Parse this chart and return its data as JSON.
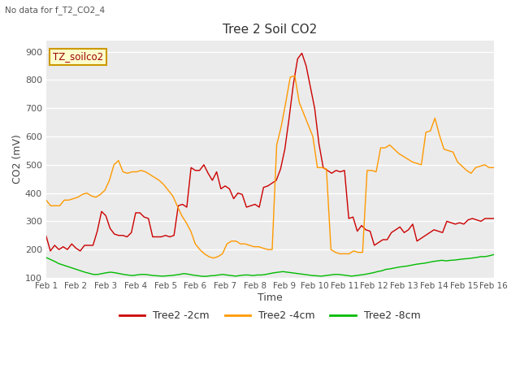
{
  "title": "Tree 2 Soil CO2",
  "subtitle": "No data for f_T2_CO2_4",
  "xlabel": "Time",
  "ylabel": "CO2 (mV)",
  "ylim": [
    100,
    940
  ],
  "yticks": [
    100,
    200,
    300,
    400,
    500,
    600,
    700,
    800,
    900
  ],
  "xtick_labels": [
    "Feb 1",
    "Feb 2",
    "Feb 3",
    "Feb 4",
    "Feb 5",
    "Feb 6",
    "Feb 7",
    "Feb 8",
    "Feb 9",
    "Feb 10",
    "Feb 11",
    "Feb 12",
    "Feb 13",
    "Feb 14",
    "Feb 15",
    "Feb 16"
  ],
  "legend_labels": [
    "Tree2 -2cm",
    "Tree2 -4cm",
    "Tree2 -8cm"
  ],
  "line_colors": [
    "#cc0000",
    "#ff9900",
    "#00bb00"
  ],
  "annotation_box": "TZ_soilco2",
  "plot_bg": "#ebebeb",
  "red_series": [
    248,
    195,
    215,
    200,
    210,
    200,
    220,
    205,
    195,
    215,
    215,
    215,
    265,
    335,
    320,
    275,
    255,
    250,
    250,
    245,
    260,
    330,
    330,
    315,
    310,
    245,
    245,
    245,
    250,
    245,
    250,
    355,
    360,
    350,
    490,
    480,
    480,
    500,
    470,
    445,
    475,
    415,
    425,
    415,
    380,
    400,
    395,
    350,
    355,
    360,
    350,
    420,
    425,
    435,
    445,
    485,
    555,
    665,
    785,
    875,
    895,
    850,
    775,
    700,
    575,
    490,
    480,
    470,
    480,
    475,
    480,
    310,
    315,
    265,
    285,
    270,
    265,
    215,
    225,
    235,
    235,
    260,
    270,
    280,
    260,
    270,
    290,
    230,
    240,
    250,
    260,
    270,
    265,
    260,
    300,
    295,
    290,
    295,
    290,
    305,
    310,
    305,
    300,
    310,
    310,
    310
  ],
  "orange_series": [
    375,
    355,
    355,
    355,
    375,
    375,
    380,
    385,
    395,
    400,
    390,
    385,
    395,
    410,
    445,
    500,
    515,
    475,
    470,
    475,
    475,
    480,
    475,
    465,
    455,
    445,
    430,
    410,
    390,
    355,
    320,
    295,
    265,
    220,
    200,
    185,
    175,
    170,
    175,
    185,
    220,
    230,
    230,
    220,
    220,
    215,
    210,
    210,
    205,
    200,
    200,
    570,
    635,
    720,
    810,
    815,
    720,
    680,
    640,
    600,
    490,
    490,
    485,
    200,
    190,
    185,
    185,
    185,
    195,
    190,
    190,
    480,
    480,
    475,
    560,
    560,
    570,
    555,
    540,
    530,
    520,
    510,
    505,
    500,
    615,
    620,
    665,
    605,
    555,
    550,
    545,
    510,
    495,
    480,
    470,
    490,
    495,
    500,
    490,
    490
  ],
  "green_series": [
    172,
    165,
    158,
    150,
    145,
    140,
    135,
    130,
    125,
    120,
    116,
    112,
    112,
    115,
    118,
    120,
    118,
    115,
    112,
    110,
    108,
    110,
    112,
    112,
    110,
    108,
    107,
    106,
    107,
    108,
    110,
    112,
    115,
    113,
    110,
    108,
    106,
    105,
    107,
    108,
    110,
    112,
    110,
    108,
    106,
    108,
    110,
    110,
    108,
    110,
    110,
    112,
    115,
    118,
    120,
    122,
    120,
    118,
    116,
    114,
    112,
    110,
    108,
    107,
    106,
    108,
    110,
    112,
    112,
    110,
    108,
    106,
    108,
    110,
    112,
    115,
    118,
    122,
    125,
    130,
    132,
    135,
    138,
    140,
    142,
    145,
    148,
    150,
    152,
    155,
    158,
    160,
    162,
    160,
    162,
    163,
    165,
    167,
    168,
    170,
    172,
    175,
    175,
    178,
    182
  ]
}
